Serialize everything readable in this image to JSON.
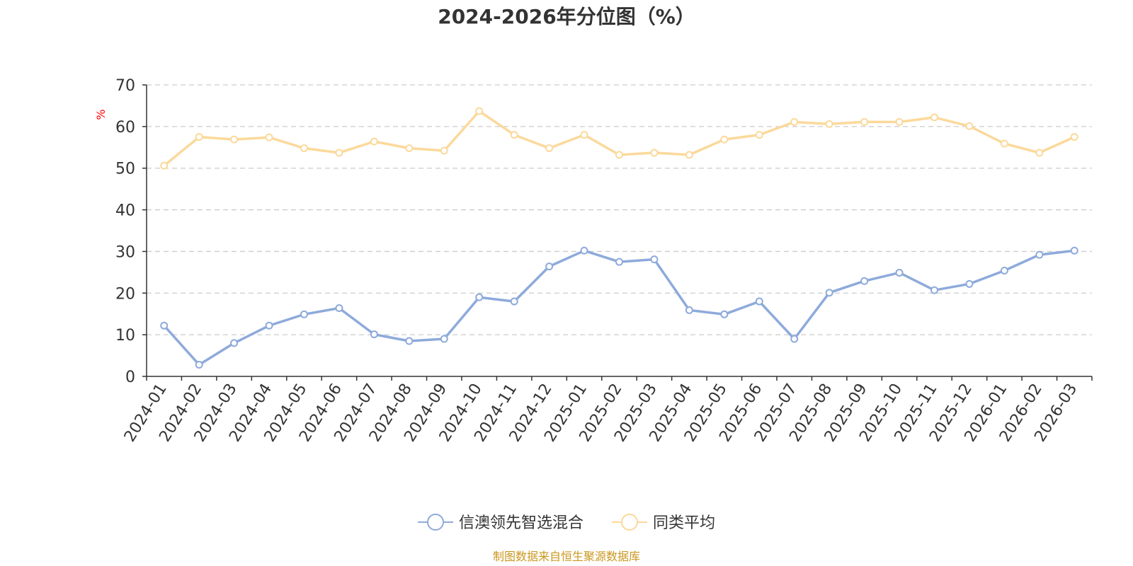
{
  "chart_data": {
    "type": "line",
    "title": "2024-2026年分位图（%）",
    "ylabel": "%",
    "xlabel": "",
    "ylim": [
      0,
      70
    ],
    "yticks": [
      0,
      10,
      20,
      30,
      40,
      50,
      60,
      70
    ],
    "grid": true,
    "legend_position": "bottom",
    "x": [
      "2024-01",
      "2024-02",
      "2024-03",
      "2024-04",
      "2024-05",
      "2024-06",
      "2024-07",
      "2024-08",
      "2024-09",
      "2024-10",
      "2024-11",
      "2024-12",
      "2025-01",
      "2025-02",
      "2025-03",
      "2025-04",
      "2025-05",
      "2025-06",
      "2025-07",
      "2025-08",
      "2025-09",
      "2025-10",
      "2025-11",
      "2025-12",
      "2026-01",
      "2026-02",
      "2026-03"
    ],
    "series": [
      {
        "name": "信澳领先智选混合",
        "color": "#8eaadb",
        "values": [
          12.2,
          2.8,
          8.0,
          12.2,
          14.9,
          16.4,
          10.1,
          8.5,
          9.0,
          19.0,
          18.0,
          26.4,
          30.2,
          27.5,
          28.1,
          15.9,
          14.9,
          18.0,
          9.0,
          20.1,
          22.9,
          24.9,
          20.7,
          22.2,
          25.4,
          29.2,
          30.2
        ]
      },
      {
        "name": "同类平均",
        "color": "#fbd99b",
        "values": [
          50.6,
          57.5,
          56.9,
          57.4,
          54.8,
          53.7,
          56.4,
          54.8,
          54.2,
          63.7,
          58.0,
          54.8,
          58.0,
          53.2,
          53.7,
          53.2,
          56.9,
          58.0,
          61.1,
          60.6,
          61.1,
          61.1,
          62.2,
          60.1,
          55.9,
          53.7,
          57.5
        ]
      }
    ],
    "source": "制图数据来自恒生聚源数据库"
  },
  "colors": {
    "axis": "#333333",
    "grid": "#cccccc",
    "unit": "#ff0000",
    "source": "#c9971f"
  }
}
